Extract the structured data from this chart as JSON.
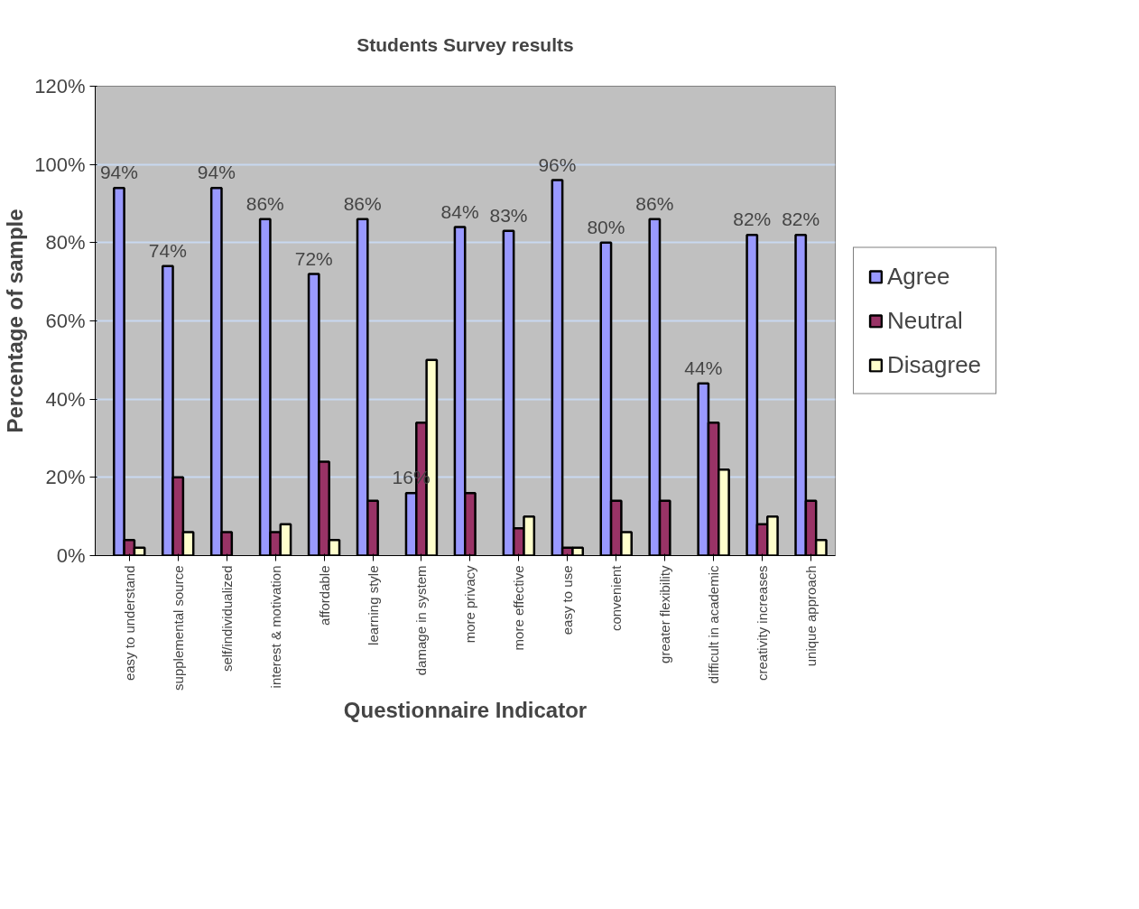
{
  "chart_data": {
    "type": "bar",
    "title": "Students Survey results",
    "xlabel": "Questionnaire Indicator",
    "ylabel": "Percentage of sample",
    "categories": [
      "easy to understand",
      "supplemental source",
      "self/individualized",
      "interest & motivation",
      "affordable",
      "learning style",
      "damage in system",
      "more privacy",
      "more effective",
      "easy to use",
      "convenient",
      "greater flexibility",
      "difficult in academic",
      "creativity increases",
      "unique approach"
    ],
    "series": [
      {
        "name": "Agree",
        "color": "#9999ff",
        "values": [
          94,
          74,
          94,
          86,
          72,
          86,
          16,
          84,
          83,
          96,
          80,
          86,
          44,
          82,
          82
        ],
        "value_labels": [
          "94%",
          "74%",
          "94%",
          "86%",
          "72%",
          "86%",
          "16%",
          "84%",
          "83%",
          "96%",
          "80%",
          "86%",
          "44%",
          "82%",
          "82%"
        ]
      },
      {
        "name": "Neutral",
        "color": "#993366",
        "values": [
          4,
          20,
          6,
          6,
          24,
          14,
          34,
          16,
          7,
          2,
          14,
          14,
          34,
          8,
          14
        ]
      },
      {
        "name": "Disagree",
        "color": "#ffffcc",
        "values": [
          2,
          6,
          null,
          8,
          4,
          null,
          50,
          null,
          10,
          2,
          6,
          null,
          22,
          10,
          4
        ]
      }
    ],
    "ylim": [
      0,
      120
    ],
    "yticks": [
      {
        "value": 0,
        "label": "0%"
      },
      {
        "value": 20,
        "label": "20%"
      },
      {
        "value": 40,
        "label": "40%"
      },
      {
        "value": 60,
        "label": "60%"
      },
      {
        "value": 80,
        "label": "80%"
      },
      {
        "value": 100,
        "label": "100%"
      },
      {
        "value": 120,
        "label": "120%"
      }
    ],
    "grid": "y",
    "legend": "right"
  }
}
